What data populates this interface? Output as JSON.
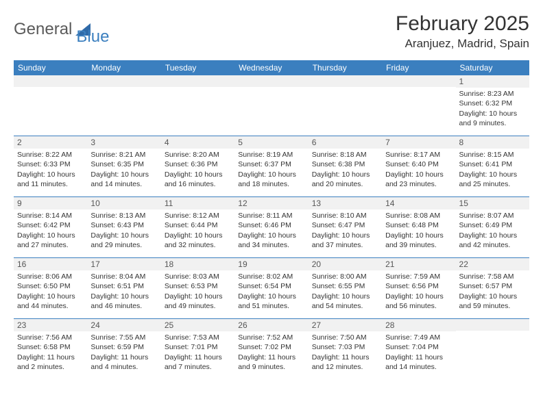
{
  "logo": {
    "text_general": "General",
    "text_blue": "Blue"
  },
  "title": "February 2025",
  "location": "Aranjuez, Madrid, Spain",
  "colors": {
    "header_bg": "#3b7fbf",
    "header_text": "#ffffff",
    "daynum_bg": "#f1f1f1",
    "text": "#333333",
    "row_border": "#3b7fbf"
  },
  "day_headers": [
    "Sunday",
    "Monday",
    "Tuesday",
    "Wednesday",
    "Thursday",
    "Friday",
    "Saturday"
  ],
  "weeks": [
    [
      {
        "n": "",
        "lines": []
      },
      {
        "n": "",
        "lines": []
      },
      {
        "n": "",
        "lines": []
      },
      {
        "n": "",
        "lines": []
      },
      {
        "n": "",
        "lines": []
      },
      {
        "n": "",
        "lines": []
      },
      {
        "n": "1",
        "lines": [
          "Sunrise: 8:23 AM",
          "Sunset: 6:32 PM",
          "Daylight: 10 hours and 9 minutes."
        ]
      }
    ],
    [
      {
        "n": "2",
        "lines": [
          "Sunrise: 8:22 AM",
          "Sunset: 6:33 PM",
          "Daylight: 10 hours and 11 minutes."
        ]
      },
      {
        "n": "3",
        "lines": [
          "Sunrise: 8:21 AM",
          "Sunset: 6:35 PM",
          "Daylight: 10 hours and 14 minutes."
        ]
      },
      {
        "n": "4",
        "lines": [
          "Sunrise: 8:20 AM",
          "Sunset: 6:36 PM",
          "Daylight: 10 hours and 16 minutes."
        ]
      },
      {
        "n": "5",
        "lines": [
          "Sunrise: 8:19 AM",
          "Sunset: 6:37 PM",
          "Daylight: 10 hours and 18 minutes."
        ]
      },
      {
        "n": "6",
        "lines": [
          "Sunrise: 8:18 AM",
          "Sunset: 6:38 PM",
          "Daylight: 10 hours and 20 minutes."
        ]
      },
      {
        "n": "7",
        "lines": [
          "Sunrise: 8:17 AM",
          "Sunset: 6:40 PM",
          "Daylight: 10 hours and 23 minutes."
        ]
      },
      {
        "n": "8",
        "lines": [
          "Sunrise: 8:15 AM",
          "Sunset: 6:41 PM",
          "Daylight: 10 hours and 25 minutes."
        ]
      }
    ],
    [
      {
        "n": "9",
        "lines": [
          "Sunrise: 8:14 AM",
          "Sunset: 6:42 PM",
          "Daylight: 10 hours and 27 minutes."
        ]
      },
      {
        "n": "10",
        "lines": [
          "Sunrise: 8:13 AM",
          "Sunset: 6:43 PM",
          "Daylight: 10 hours and 29 minutes."
        ]
      },
      {
        "n": "11",
        "lines": [
          "Sunrise: 8:12 AM",
          "Sunset: 6:44 PM",
          "Daylight: 10 hours and 32 minutes."
        ]
      },
      {
        "n": "12",
        "lines": [
          "Sunrise: 8:11 AM",
          "Sunset: 6:46 PM",
          "Daylight: 10 hours and 34 minutes."
        ]
      },
      {
        "n": "13",
        "lines": [
          "Sunrise: 8:10 AM",
          "Sunset: 6:47 PM",
          "Daylight: 10 hours and 37 minutes."
        ]
      },
      {
        "n": "14",
        "lines": [
          "Sunrise: 8:08 AM",
          "Sunset: 6:48 PM",
          "Daylight: 10 hours and 39 minutes."
        ]
      },
      {
        "n": "15",
        "lines": [
          "Sunrise: 8:07 AM",
          "Sunset: 6:49 PM",
          "Daylight: 10 hours and 42 minutes."
        ]
      }
    ],
    [
      {
        "n": "16",
        "lines": [
          "Sunrise: 8:06 AM",
          "Sunset: 6:50 PM",
          "Daylight: 10 hours and 44 minutes."
        ]
      },
      {
        "n": "17",
        "lines": [
          "Sunrise: 8:04 AM",
          "Sunset: 6:51 PM",
          "Daylight: 10 hours and 46 minutes."
        ]
      },
      {
        "n": "18",
        "lines": [
          "Sunrise: 8:03 AM",
          "Sunset: 6:53 PM",
          "Daylight: 10 hours and 49 minutes."
        ]
      },
      {
        "n": "19",
        "lines": [
          "Sunrise: 8:02 AM",
          "Sunset: 6:54 PM",
          "Daylight: 10 hours and 51 minutes."
        ]
      },
      {
        "n": "20",
        "lines": [
          "Sunrise: 8:00 AM",
          "Sunset: 6:55 PM",
          "Daylight: 10 hours and 54 minutes."
        ]
      },
      {
        "n": "21",
        "lines": [
          "Sunrise: 7:59 AM",
          "Sunset: 6:56 PM",
          "Daylight: 10 hours and 56 minutes."
        ]
      },
      {
        "n": "22",
        "lines": [
          "Sunrise: 7:58 AM",
          "Sunset: 6:57 PM",
          "Daylight: 10 hours and 59 minutes."
        ]
      }
    ],
    [
      {
        "n": "23",
        "lines": [
          "Sunrise: 7:56 AM",
          "Sunset: 6:58 PM",
          "Daylight: 11 hours and 2 minutes."
        ]
      },
      {
        "n": "24",
        "lines": [
          "Sunrise: 7:55 AM",
          "Sunset: 6:59 PM",
          "Daylight: 11 hours and 4 minutes."
        ]
      },
      {
        "n": "25",
        "lines": [
          "Sunrise: 7:53 AM",
          "Sunset: 7:01 PM",
          "Daylight: 11 hours and 7 minutes."
        ]
      },
      {
        "n": "26",
        "lines": [
          "Sunrise: 7:52 AM",
          "Sunset: 7:02 PM",
          "Daylight: 11 hours and 9 minutes."
        ]
      },
      {
        "n": "27",
        "lines": [
          "Sunrise: 7:50 AM",
          "Sunset: 7:03 PM",
          "Daylight: 11 hours and 12 minutes."
        ]
      },
      {
        "n": "28",
        "lines": [
          "Sunrise: 7:49 AM",
          "Sunset: 7:04 PM",
          "Daylight: 11 hours and 14 minutes."
        ]
      },
      {
        "n": "",
        "lines": []
      }
    ]
  ]
}
